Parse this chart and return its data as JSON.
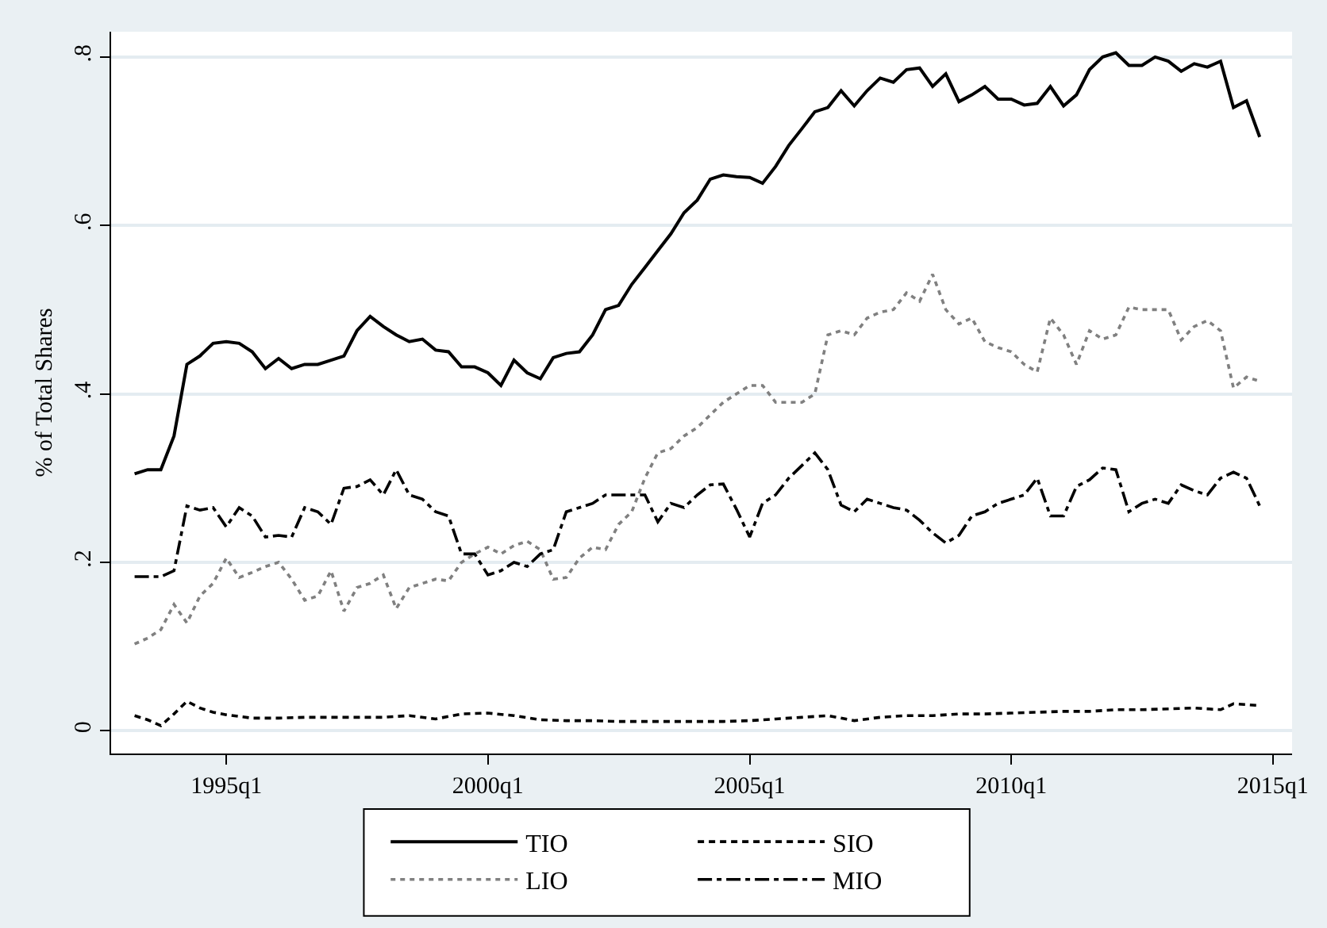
{
  "chart_data": {
    "type": "line",
    "ylabel": "% of Total Shares",
    "xlim": [
      "1992-10-19",
      "2015-05-15"
    ],
    "ylim": [
      -0.027,
      0.83
    ],
    "xticks": [
      {
        "value": "1995-01",
        "label": "1995q1"
      },
      {
        "value": "2000-01",
        "label": "2000q1"
      },
      {
        "value": "2005-01",
        "label": "2005q1"
      },
      {
        "value": "2010-01",
        "label": "2010q1"
      },
      {
        "value": "2015-01",
        "label": "2015q1"
      }
    ],
    "yticks": [
      {
        "value": 0,
        "label": "0"
      },
      {
        "value": 0.2,
        "label": ".2"
      },
      {
        "value": 0.4,
        "label": ".4"
      },
      {
        "value": 0.6,
        "label": ".6"
      },
      {
        "value": 0.8,
        "label": ".8"
      }
    ],
    "grid": "y",
    "legend": "bottom",
    "marker": "none",
    "series": [
      {
        "name": "TIO",
        "color": "#000000",
        "line_style": "solid",
        "x": [
          "1993-04",
          "1993-07",
          "1993-10",
          "1994-01",
          "1994-04",
          "1994-07",
          "1994-10",
          "1995-01",
          "1995-04",
          "1995-07",
          "1995-10",
          "1996-01",
          "1996-04",
          "1996-07",
          "1996-10",
          "1997-01",
          "1997-04",
          "1997-07",
          "1997-10",
          "1998-01",
          "1998-04",
          "1998-07",
          "1998-10",
          "1999-01",
          "1999-04",
          "1999-07",
          "1999-10",
          "2000-01",
          "2000-04",
          "2000-07",
          "2000-10",
          "2001-01",
          "2001-04",
          "2001-07",
          "2001-10",
          "2002-01",
          "2002-04",
          "2002-07",
          "2002-10",
          "2003-01",
          "2003-04",
          "2003-07",
          "2003-10",
          "2004-01",
          "2004-04",
          "2004-07",
          "2004-10",
          "2005-01",
          "2005-04",
          "2005-07",
          "2005-10",
          "2006-01",
          "2006-04",
          "2006-07",
          "2006-10",
          "2007-01",
          "2007-04",
          "2007-07",
          "2007-10",
          "2008-01",
          "2008-04",
          "2008-07",
          "2008-10",
          "2009-01",
          "2009-04",
          "2009-07",
          "2009-10",
          "2010-01",
          "2010-04",
          "2010-07",
          "2010-10",
          "2011-01",
          "2011-04",
          "2011-07",
          "2011-10",
          "2012-01",
          "2012-04",
          "2012-07",
          "2012-10",
          "2013-01",
          "2013-04",
          "2013-07",
          "2013-10",
          "2014-01",
          "2014-04",
          "2014-07",
          "2014-10"
        ],
        "values": [
          0.305,
          0.31,
          0.31,
          0.35,
          0.435,
          0.445,
          0.46,
          0.462,
          0.46,
          0.45,
          0.43,
          0.442,
          0.43,
          0.435,
          0.435,
          0.44,
          0.445,
          0.475,
          0.492,
          0.48,
          0.47,
          0.462,
          0.465,
          0.452,
          0.45,
          0.432,
          0.432,
          0.425,
          0.41,
          0.44,
          0.425,
          0.418,
          0.443,
          0.448,
          0.45,
          0.47,
          0.5,
          0.505,
          0.53,
          0.55,
          0.57,
          0.59,
          0.615,
          0.63,
          0.655,
          0.66,
          0.658,
          0.657,
          0.65,
          0.67,
          0.695,
          0.715,
          0.735,
          0.74,
          0.76,
          0.742,
          0.76,
          0.775,
          0.77,
          0.785,
          0.787,
          0.765,
          0.78,
          0.747,
          0.755,
          0.765,
          0.75,
          0.75,
          0.743,
          0.745,
          0.765,
          0.742,
          0.755,
          0.785,
          0.8,
          0.805,
          0.79,
          0.79,
          0.8,
          0.795,
          0.783,
          0.792,
          0.788,
          0.795,
          0.74,
          0.748,
          0.705
        ]
      },
      {
        "name": "SIO",
        "color": "#000000",
        "line_style": "dashed",
        "x": [
          "1993-04",
          "1993-07",
          "1993-10",
          "1994-01",
          "1994-04",
          "1994-07",
          "1994-10",
          "1995-01",
          "1995-07",
          "1996-01",
          "1996-07",
          "1997-01",
          "1997-07",
          "1998-01",
          "1998-07",
          "1999-01",
          "1999-07",
          "2000-01",
          "2000-07",
          "2001-01",
          "2001-07",
          "2002-01",
          "2002-07",
          "2003-01",
          "2003-07",
          "2004-01",
          "2004-07",
          "2005-01",
          "2005-07",
          "2006-01",
          "2006-07",
          "2007-01",
          "2007-07",
          "2008-01",
          "2008-07",
          "2009-01",
          "2009-07",
          "2010-01",
          "2010-07",
          "2011-01",
          "2011-07",
          "2012-01",
          "2012-07",
          "2013-01",
          "2013-07",
          "2014-01",
          "2014-04",
          "2014-10"
        ],
        "values": [
          0.018,
          0.013,
          0.006,
          0.02,
          0.035,
          0.027,
          0.022,
          0.019,
          0.015,
          0.015,
          0.016,
          0.016,
          0.016,
          0.016,
          0.018,
          0.014,
          0.02,
          0.021,
          0.018,
          0.013,
          0.012,
          0.012,
          0.011,
          0.011,
          0.011,
          0.011,
          0.011,
          0.012,
          0.014,
          0.016,
          0.018,
          0.012,
          0.016,
          0.018,
          0.018,
          0.02,
          0.02,
          0.021,
          0.022,
          0.023,
          0.023,
          0.025,
          0.025,
          0.026,
          0.027,
          0.025,
          0.032,
          0.03
        ]
      },
      {
        "name": "LIO",
        "color": "#808080",
        "line_style": "dotted",
        "x": [
          "1993-04",
          "1993-07",
          "1993-10",
          "1994-01",
          "1994-04",
          "1994-07",
          "1994-10",
          "1995-01",
          "1995-04",
          "1995-07",
          "1995-10",
          "1996-01",
          "1996-04",
          "1996-07",
          "1996-10",
          "1997-01",
          "1997-04",
          "1997-07",
          "1997-10",
          "1998-01",
          "1998-04",
          "1998-07",
          "1998-10",
          "1999-01",
          "1999-04",
          "1999-07",
          "1999-10",
          "2000-01",
          "2000-04",
          "2000-07",
          "2000-10",
          "2001-01",
          "2001-04",
          "2001-07",
          "2001-10",
          "2002-01",
          "2002-04",
          "2002-07",
          "2002-10",
          "2003-01",
          "2003-04",
          "2003-07",
          "2003-10",
          "2004-01",
          "2004-04",
          "2004-07",
          "2004-10",
          "2005-01",
          "2005-04",
          "2005-07",
          "2005-10",
          "2006-01",
          "2006-04",
          "2006-07",
          "2006-10",
          "2007-01",
          "2007-04",
          "2007-07",
          "2007-10",
          "2008-01",
          "2008-04",
          "2008-07",
          "2008-10",
          "2009-01",
          "2009-04",
          "2009-07",
          "2009-10",
          "2010-01",
          "2010-04",
          "2010-07",
          "2010-10",
          "2011-01",
          "2011-04",
          "2011-07",
          "2011-10",
          "2012-01",
          "2012-04",
          "2012-07",
          "2012-10",
          "2013-01",
          "2013-04",
          "2013-07",
          "2013-10",
          "2014-01",
          "2014-04",
          "2014-07",
          "2014-10"
        ],
        "values": [
          0.103,
          0.11,
          0.12,
          0.15,
          0.128,
          0.16,
          0.175,
          0.205,
          0.182,
          0.188,
          0.195,
          0.2,
          0.18,
          0.155,
          0.16,
          0.19,
          0.142,
          0.17,
          0.175,
          0.185,
          0.145,
          0.17,
          0.175,
          0.18,
          0.178,
          0.2,
          0.21,
          0.218,
          0.21,
          0.22,
          0.225,
          0.215,
          0.18,
          0.182,
          0.205,
          0.218,
          0.215,
          0.245,
          0.26,
          0.3,
          0.33,
          0.335,
          0.35,
          0.36,
          0.375,
          0.39,
          0.4,
          0.41,
          0.41,
          0.39,
          0.39,
          0.39,
          0.4,
          0.47,
          0.475,
          0.47,
          0.49,
          0.497,
          0.5,
          0.52,
          0.51,
          0.542,
          0.5,
          0.483,
          0.49,
          0.462,
          0.455,
          0.45,
          0.435,
          0.426,
          0.49,
          0.47,
          0.435,
          0.475,
          0.465,
          0.47,
          0.503,
          0.5,
          0.5,
          0.5,
          0.464,
          0.48,
          0.487,
          0.475,
          0.407,
          0.42,
          0.415
        ]
      },
      {
        "name": "MIO",
        "color": "#000000",
        "line_style": "dashdot",
        "x": [
          "1993-04",
          "1993-07",
          "1993-10",
          "1994-01",
          "1994-04",
          "1994-07",
          "1994-10",
          "1995-01",
          "1995-04",
          "1995-07",
          "1995-10",
          "1996-01",
          "1996-04",
          "1996-07",
          "1996-10",
          "1997-01",
          "1997-04",
          "1997-07",
          "1997-10",
          "1998-01",
          "1998-04",
          "1998-07",
          "1998-10",
          "1999-01",
          "1999-04",
          "1999-07",
          "1999-10",
          "2000-01",
          "2000-04",
          "2000-07",
          "2000-10",
          "2001-01",
          "2001-04",
          "2001-07",
          "2001-10",
          "2002-01",
          "2002-04",
          "2002-07",
          "2002-10",
          "2003-01",
          "2003-04",
          "2003-07",
          "2003-10",
          "2004-01",
          "2004-04",
          "2004-07",
          "2004-10",
          "2005-01",
          "2005-04",
          "2005-07",
          "2005-10",
          "2006-01",
          "2006-04",
          "2006-07",
          "2006-10",
          "2007-01",
          "2007-04",
          "2007-07",
          "2007-10",
          "2008-01",
          "2008-04",
          "2008-07",
          "2008-10",
          "2009-01",
          "2009-04",
          "2009-07",
          "2009-10",
          "2010-01",
          "2010-04",
          "2010-07",
          "2010-10",
          "2011-01",
          "2011-04",
          "2011-07",
          "2011-10",
          "2012-01",
          "2012-04",
          "2012-07",
          "2012-10",
          "2013-01",
          "2013-04",
          "2013-07",
          "2013-10",
          "2014-01",
          "2014-04",
          "2014-07",
          "2014-10"
        ],
        "values": [
          0.183,
          0.183,
          0.183,
          0.19,
          0.267,
          0.262,
          0.265,
          0.242,
          0.265,
          0.255,
          0.23,
          0.232,
          0.23,
          0.265,
          0.26,
          0.245,
          0.288,
          0.29,
          0.298,
          0.28,
          0.31,
          0.28,
          0.275,
          0.26,
          0.255,
          0.21,
          0.21,
          0.185,
          0.19,
          0.2,
          0.195,
          0.21,
          0.215,
          0.26,
          0.265,
          0.27,
          0.28,
          0.28,
          0.28,
          0.28,
          0.248,
          0.27,
          0.265,
          0.28,
          0.292,
          0.293,
          0.263,
          0.23,
          0.27,
          0.28,
          0.3,
          0.315,
          0.33,
          0.31,
          0.268,
          0.26,
          0.275,
          0.27,
          0.265,
          0.262,
          0.25,
          0.235,
          0.223,
          0.232,
          0.255,
          0.26,
          0.27,
          0.275,
          0.28,
          0.3,
          0.255,
          0.255,
          0.29,
          0.298,
          0.312,
          0.31,
          0.26,
          0.27,
          0.275,
          0.27,
          0.292,
          0.285,
          0.28,
          0.3,
          0.307,
          0.3,
          0.267
        ]
      }
    ]
  }
}
